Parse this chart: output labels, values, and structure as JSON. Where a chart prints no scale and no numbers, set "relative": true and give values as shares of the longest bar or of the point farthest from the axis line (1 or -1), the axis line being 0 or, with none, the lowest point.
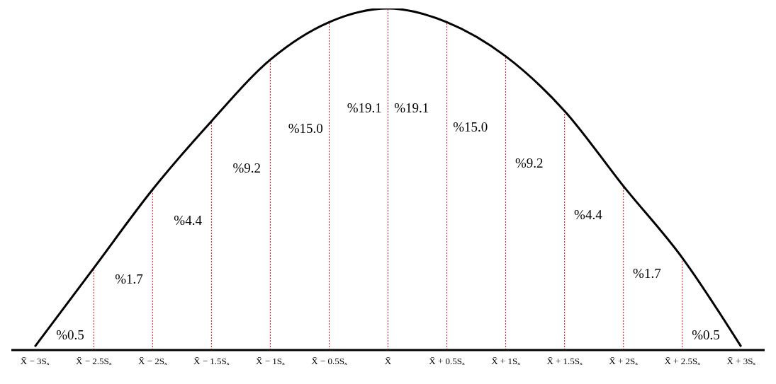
{
  "chart_data": {
    "type": "line",
    "relative": true,
    "color": "#000000",
    "marker": "none",
    "line_style": "solid",
    "x": [
      -3,
      -2.5,
      -2,
      -1.5,
      -1,
      -0.5,
      0,
      0.5,
      1,
      1.5,
      2,
      2.5,
      3
    ],
    "values": [
      0.01,
      0.24,
      0.47,
      0.67,
      0.85,
      0.96,
      1,
      0.96,
      0.86,
      0.7,
      0.48,
      0.27,
      0.01
    ],
    "xlim": [
      -3.2,
      3.2
    ],
    "xticks": [
      {
        "value": -3,
        "label": "X̄ − 3Sₓ"
      },
      {
        "value": -2.5,
        "label": "X̄ − 2.5Sₓ"
      },
      {
        "value": -2,
        "label": "X̄ − 2Sₓ"
      },
      {
        "value": -1.5,
        "label": "X̄ − 1.5Sₓ"
      },
      {
        "value": -1,
        "label": "X̄ − 1Sₓ"
      },
      {
        "value": -0.5,
        "label": "X̄ − 0.5Sₓ"
      },
      {
        "value": 0,
        "label": "X̄"
      },
      {
        "value": 0.5,
        "label": "X̄ + 0.5Sₓ"
      },
      {
        "value": 1,
        "label": "X̄ + 1Sₓ"
      },
      {
        "value": 1.5,
        "label": "X̄ + 1.5Sₓ"
      },
      {
        "value": 2,
        "label": "X̄ + 2Sₓ"
      },
      {
        "value": 2.5,
        "label": "X̄ + 2.5Sₓ"
      },
      {
        "value": 3,
        "label": "X̄ + 3Sₓ"
      }
    ],
    "ref_lines": [
      {
        "axis": "x",
        "value": -2.5,
        "color": "#ff0000",
        "line_style": "dotted"
      },
      {
        "axis": "x",
        "value": -2,
        "color": "#ff0000",
        "line_style": "dotted"
      },
      {
        "axis": "x",
        "value": -1.5,
        "color": "#ff0000",
        "line_style": "dotted"
      },
      {
        "axis": "x",
        "value": -1,
        "color": "#ff0000",
        "line_style": "dotted"
      },
      {
        "axis": "x",
        "value": -0.5,
        "color": "#ff0000",
        "line_style": "dotted"
      },
      {
        "axis": "x",
        "value": 0,
        "color": "#ff0000",
        "line_style": "dotted"
      },
      {
        "axis": "x",
        "value": 0.5,
        "color": "#ff0000",
        "line_style": "dotted"
      },
      {
        "axis": "x",
        "value": 1,
        "color": "#ff0000",
        "line_style": "dotted"
      },
      {
        "axis": "x",
        "value": 1.5,
        "color": "#ff0000",
        "line_style": "dotted"
      },
      {
        "axis": "x",
        "value": 2,
        "color": "#ff0000",
        "line_style": "dotted"
      },
      {
        "axis": "x",
        "value": 2.5,
        "color": "#ff0000",
        "line_style": "dotted"
      }
    ],
    "annotations": [
      "%0.5",
      "%1.7",
      "%4.4",
      "%9.2",
      "%15.0",
      "%19.1",
      "%19.1",
      "%15.0",
      "%9.2",
      "%4.4",
      "%1.7",
      "%0.5"
    ]
  }
}
